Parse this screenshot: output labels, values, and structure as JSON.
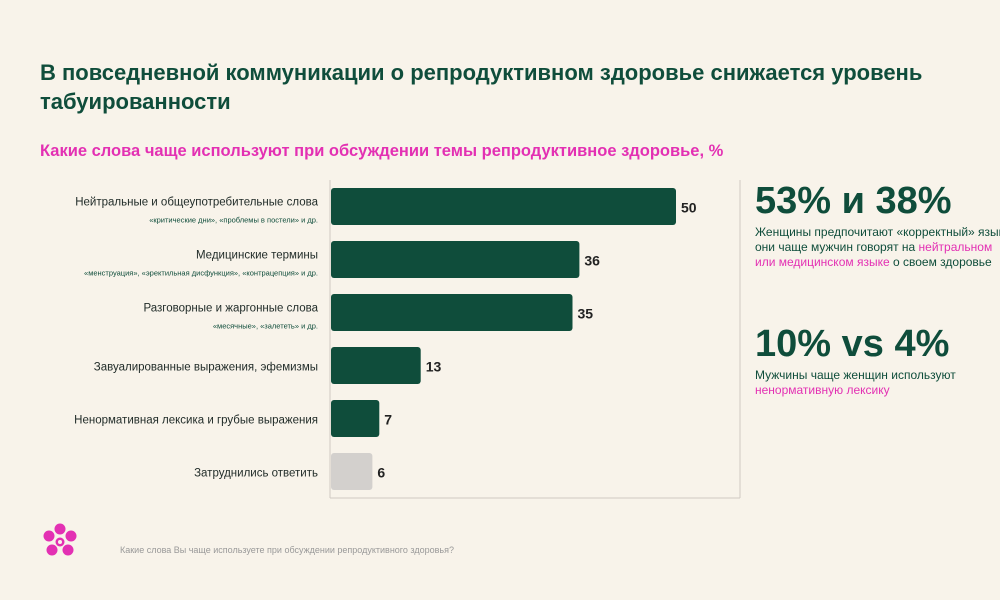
{
  "title": "В повседневной коммуникации о репродуктивном здоровье снижается уровень табуированности",
  "subtitle": "Какие слова чаще используют при обсуждении темы репродуктивное здоровье, %",
  "colors": {
    "bar": "#0f4d3b",
    "bar_muted": "#d3d0cd",
    "accent": "#e330b3"
  },
  "chart_data": {
    "type": "bar",
    "orientation": "horizontal",
    "categories": [
      "Нейтральные и общеупотребительные слова",
      "Медицинские термины",
      "Разговорные и жаргонные слова",
      "Завуалированные выражения, эфемизмы",
      "Ненормативная лексика и грубые выражения",
      "Затруднились ответить"
    ],
    "notes": [
      "«критические дни», «проблемы в постели» и др.",
      "«менструация», «эректильная дисфункция», «контрацепция» и др.",
      "«месячные», «залететь» и др.",
      "",
      "",
      ""
    ],
    "values": [
      50,
      36,
      35,
      13,
      7,
      6
    ],
    "xlim": [
      0,
      60
    ],
    "grid": false
  },
  "stats": [
    {
      "value": "53% и 38%",
      "desc_plain": "Женщины предпочитают «корректный» язык: они чаще мужчин говорят на ",
      "desc_accent": "нейтральном или медицинском языке",
      "desc_tail": " о своем здоровье"
    },
    {
      "value": "10% vs 4%",
      "desc_plain": "Мужчины чаще женщин используют ",
      "desc_accent": "ненормативную лексику",
      "desc_tail": ""
    }
  ],
  "footnote": "Какие слова Вы чаще используете при обсуждении репродуктивного здоровья?"
}
